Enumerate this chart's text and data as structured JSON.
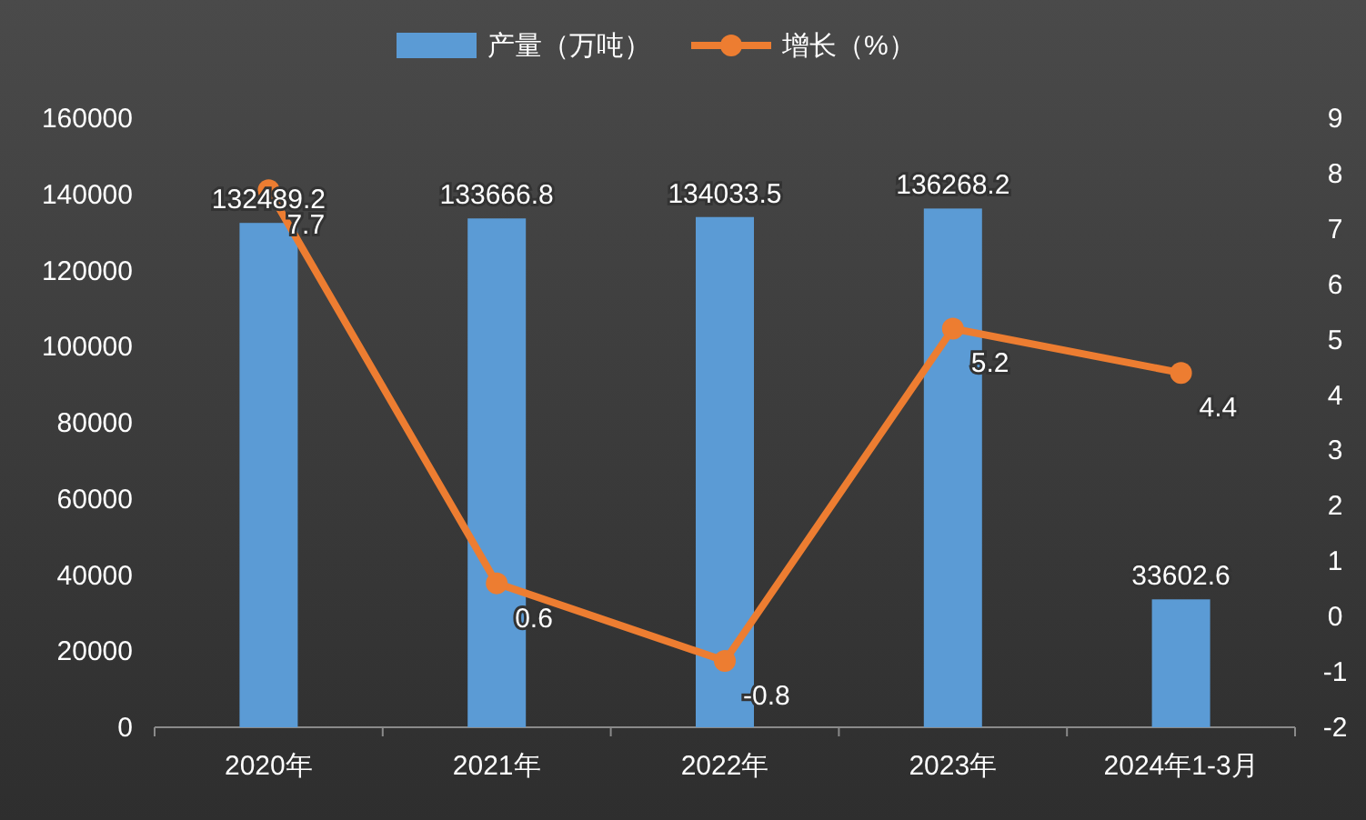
{
  "chart_data": {
    "type": "bar",
    "categories": [
      "2020年",
      "2021年",
      "2022年",
      "2023年",
      "2024年1-3月"
    ],
    "series": [
      {
        "name": "产量（万吨）",
        "color": "#5b9bd5",
        "values": [
          132489.2,
          133666.8,
          134033.5,
          136268.2,
          33602.6
        ]
      },
      {
        "name": "增长（%）",
        "type": "line",
        "axis": "y2",
        "color": "#ed7d31",
        "values": [
          7.7,
          0.6,
          -0.8,
          5.2,
          4.4
        ]
      }
    ],
    "ylim": [
      0,
      160000
    ],
    "yticks": [
      0,
      20000,
      40000,
      60000,
      80000,
      100000,
      120000,
      140000,
      160000
    ],
    "y2lim": [
      -2,
      9
    ],
    "y2ticks": [
      -2,
      -1,
      0,
      1,
      2,
      3,
      4,
      5,
      6,
      7,
      8,
      9
    ],
    "data_labels": true,
    "legend": "top",
    "marker": "circle"
  }
}
